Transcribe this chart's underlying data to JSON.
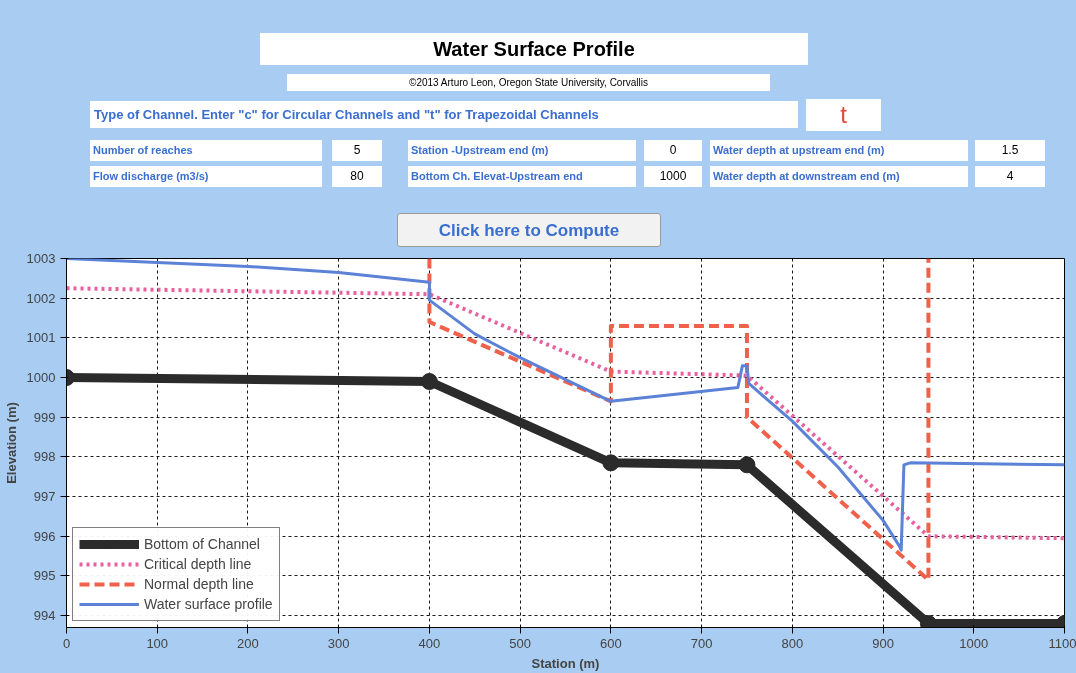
{
  "chart_data": {
    "type": "line",
    "title": "Water Surface Profile",
    "subtitle": "©2013 Arturo Leon, Oregon State University, Corvallis",
    "xlabel": "Station (m)",
    "ylabel": "Elevation (m)",
    "xlim": [
      0,
      1100
    ],
    "xticks": [
      0,
      100,
      200,
      300,
      400,
      500,
      600,
      700,
      800,
      900,
      1000,
      1100
    ],
    "ylim": [
      993.7,
      1003
    ],
    "yticks": [
      994,
      995,
      996,
      997,
      998,
      999,
      1000,
      1001,
      1002,
      1003
    ],
    "grid": true,
    "legend": "bottom left",
    "series": [
      {
        "name": "Bottom of Channel",
        "color": "#2b2b2b",
        "marker": "circle",
        "line_style": "solid",
        "x": [
          0,
          400,
          600,
          750,
          950,
          1100
        ],
        "values": [
          1000,
          999.9,
          997.85,
          997.8,
          993.8,
          993.8
        ]
      },
      {
        "name": "Critical depth line",
        "color": "#e8609e",
        "marker": "none",
        "line_style": "dotted",
        "x": [
          0,
          400,
          600,
          750,
          950,
          1100
        ],
        "values": [
          1002.25,
          1002.1,
          1000.15,
          1000.05,
          996.0,
          995.95
        ]
      },
      {
        "name": "Normal depth line",
        "color": "#f0604a",
        "marker": "none",
        "line_style": "dashed",
        "x": [
          400,
          400,
          600,
          600,
          750,
          750,
          950,
          950
        ],
        "values": [
          1003,
          1001.4,
          999.4,
          1001.3,
          1001.3,
          999.0,
          994.9,
          1003
        ]
      },
      {
        "name": "Water surface profile",
        "color": "#5b82d6",
        "marker": "none",
        "line_style": "solid",
        "x": [
          0,
          100,
          200,
          300,
          400,
          400,
          450,
          500,
          600,
          740,
          745,
          750,
          752,
          800,
          850,
          900,
          918,
          920,
          923,
          930,
          1100
        ],
        "values": [
          1003.0,
          1002.9,
          1002.8,
          1002.65,
          1002.4,
          1001.95,
          1001.1,
          1000.5,
          999.4,
          999.75,
          1000.3,
          1000.3,
          999.85,
          998.9,
          997.75,
          996.4,
          995.75,
          995.65,
          997.8,
          997.85,
          997.8
        ]
      }
    ],
    "annotations": [
      "Type of Channel. Enter \"c\" for Circular Channels and \"t\" for Trapezoidal Channels",
      "t",
      "Number of reaches",
      "5",
      "Flow discharge (m3/s)",
      "80",
      "Station -Upstream end (m)",
      "0",
      "Bottom Ch. Elevat-Upstream end",
      "1000",
      "Water depth at upstream end (m)",
      "1.5",
      "Water depth at downstream end (m)",
      "4",
      "Click here to Compute"
    ]
  }
}
